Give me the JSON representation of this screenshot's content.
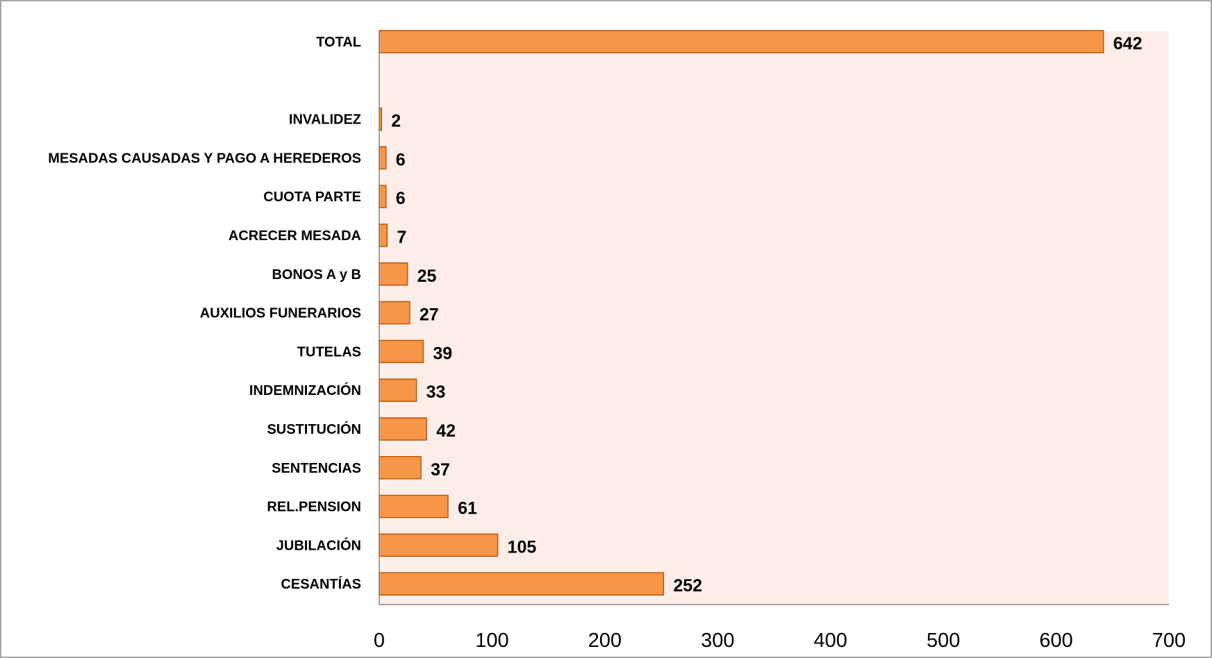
{
  "chart_data": {
    "type": "bar",
    "orientation": "horizontal",
    "categories": [
      "TOTAL",
      "",
      "INVALIDEZ",
      "MESADAS CAUSADAS Y PAGO A HEREDEROS",
      "CUOTA PARTE",
      "ACRECER MESADA",
      "BONOS A y B",
      "AUXILIOS FUNERARIOS",
      "TUTELAS",
      "INDEMNIZACIÓN",
      "SUSTITUCIÓN",
      "SENTENCIAS",
      "REL.PENSION",
      "JUBILACIÓN",
      "CESANTÍAS"
    ],
    "values": [
      642,
      null,
      2,
      6,
      6,
      7,
      25,
      27,
      39,
      33,
      42,
      37,
      61,
      105,
      252
    ],
    "data_labels": [
      "642",
      "",
      "2",
      "6",
      "6",
      "7",
      "25",
      "27",
      "39",
      "33",
      "42",
      "37",
      "61",
      "105",
      "252"
    ],
    "xlim": [
      0,
      700
    ],
    "x_ticks": [
      0,
      100,
      200,
      300,
      400,
      500,
      600,
      700
    ],
    "x_tick_labels": [
      "0",
      "100",
      "200",
      "300",
      "400",
      "500",
      "600",
      "700"
    ],
    "title": "",
    "xlabel": "",
    "ylabel": "",
    "grid": false,
    "legend": "none",
    "colors": {
      "bar_fill": "#F79646",
      "bar_stroke": "#B65708",
      "plot_background": "#FCEDE8",
      "axis_line": "#868686",
      "frame_border": "#868686"
    }
  }
}
